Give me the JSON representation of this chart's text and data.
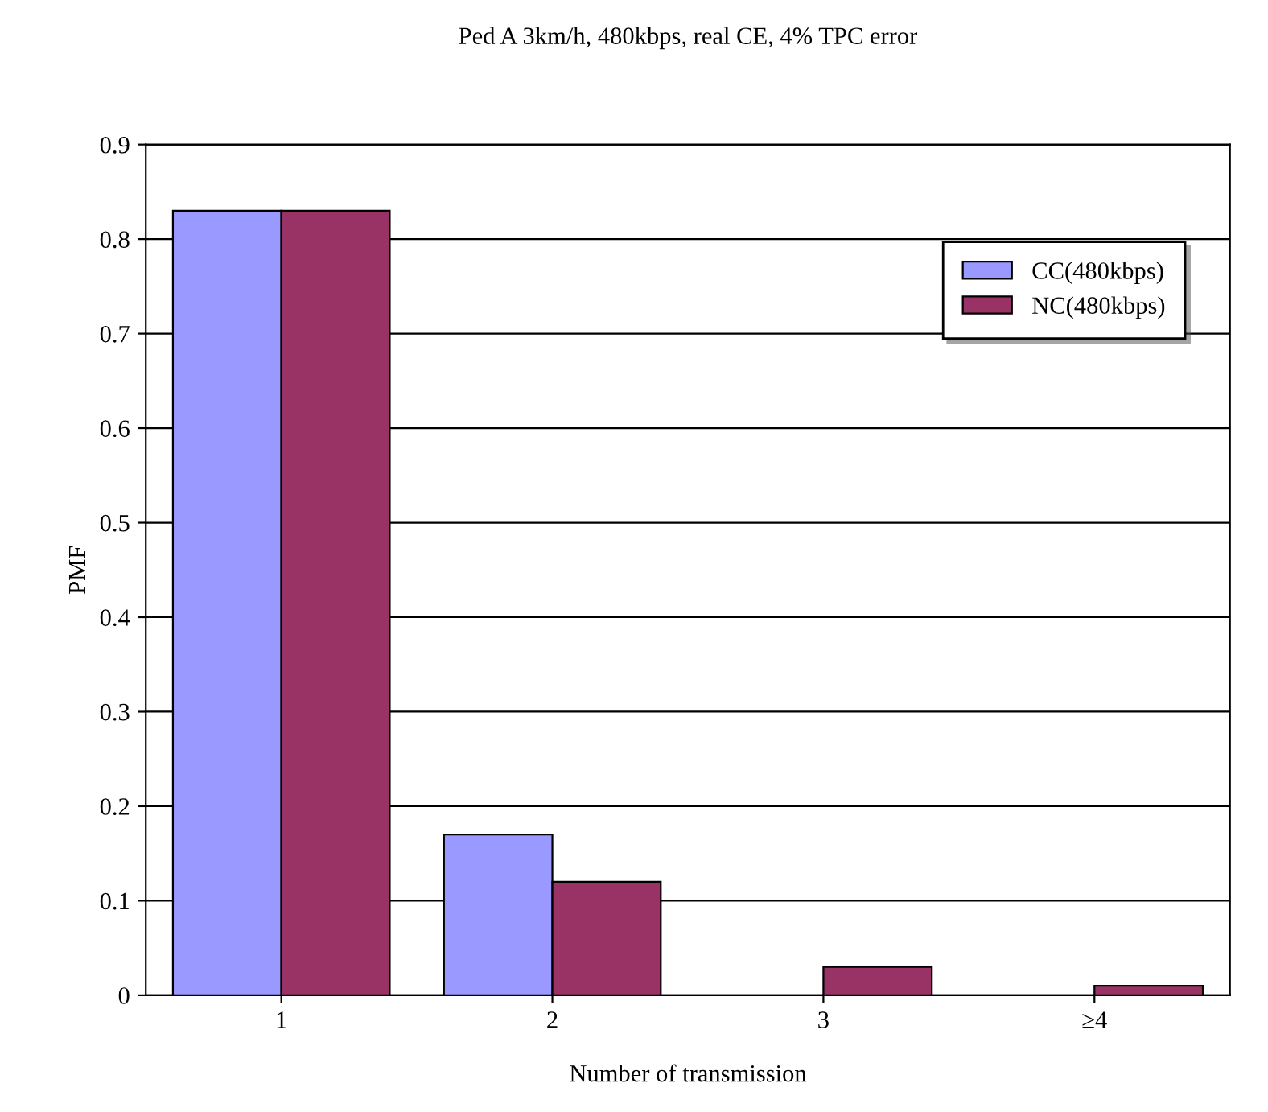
{
  "chart_data": {
    "type": "bar",
    "title": "Ped A 3km/h, 480kbps, real CE, 4% TPC error",
    "xlabel": "Number of transmission",
    "ylabel": "PMF",
    "categories": [
      "1",
      "2",
      "3",
      "≥4"
    ],
    "series": [
      {
        "name": "CC(480kbps)",
        "color": "#9999ff",
        "values": [
          0.83,
          0.17,
          0,
          0
        ]
      },
      {
        "name": "NC(480kbps)",
        "color": "#993366",
        "values": [
          0.83,
          0.12,
          0.03,
          0.01
        ]
      }
    ],
    "ylim": [
      0,
      0.9
    ],
    "yticks": [
      0,
      0.1,
      0.2,
      0.3,
      0.4,
      0.5,
      0.6,
      0.7,
      0.8,
      0.9
    ],
    "grid": "y",
    "legend": "top right"
  }
}
